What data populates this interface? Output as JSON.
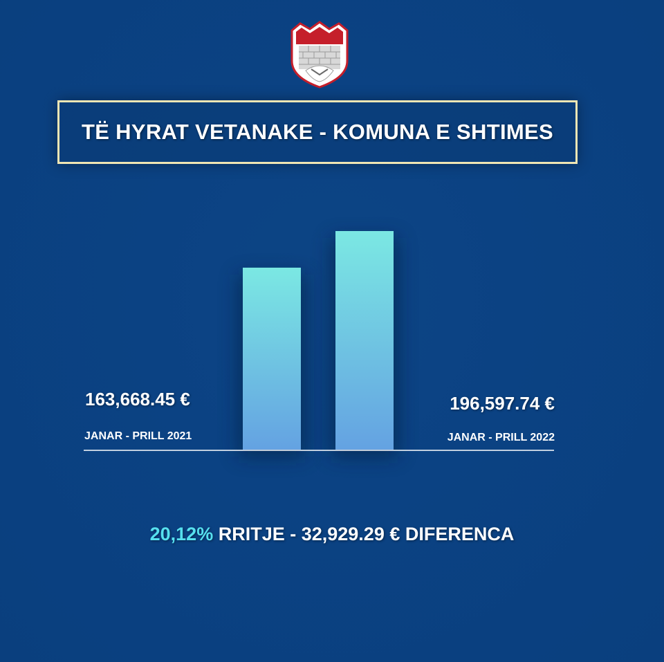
{
  "title": "TË HYRAT VETANAKE - KOMUNA E SHTIMES",
  "colors": {
    "background": "#0b4283",
    "bar_top": "#7be8e3",
    "bar_bottom": "#64a2e2",
    "accent": "#56e0ef",
    "title_border": "#efe6b4"
  },
  "chart_data": {
    "type": "bar",
    "categories": [
      "JANAR - PRILL 2021",
      "JANAR - PRILL 2022"
    ],
    "values": [
      163668.45,
      196597.74
    ],
    "value_labels": [
      "163,668.45 €",
      "196,597.74 €"
    ],
    "title": "TË HYRAT VETANAKE - KOMUNA E SHTIMES",
    "grid": false
  },
  "footer": {
    "percent": "20,12%",
    "rest": " RRITJE - 32,929.29 € DIFERENCA"
  }
}
